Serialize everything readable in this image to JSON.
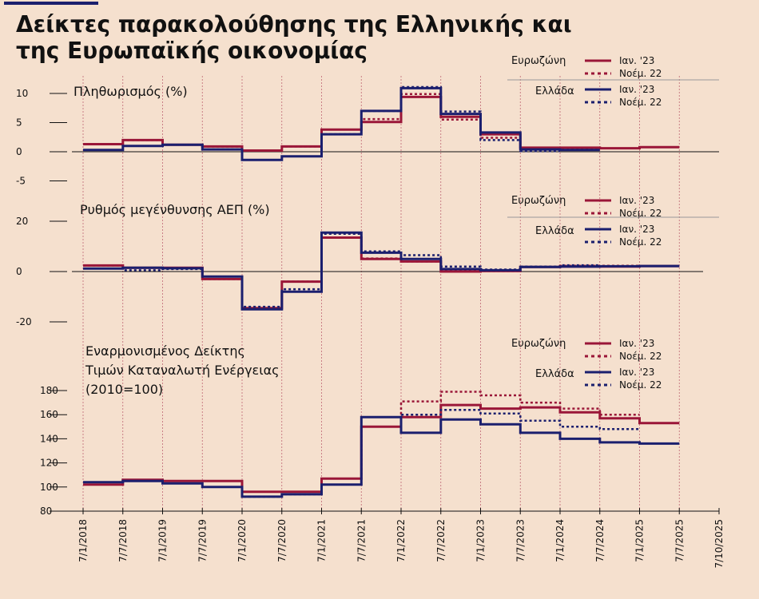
{
  "header": {
    "title_line1": "Δείκτες παρακολούθησης της  Ελληνικής και",
    "title_line2": "της Ευρωπαϊκής οικονομίας"
  },
  "colors": {
    "eurozone": "#9a1638",
    "greece": "#1b1f6e",
    "background": "#f5e0ce",
    "vlines": "#9a1638"
  },
  "legend": {
    "eurozone": "Ευρωζώνη",
    "greece": "Ελλάδα",
    "solid": "Ιαν. '23",
    "dotted": "Νοέμ. 22"
  },
  "x_ticks": [
    "7/1/2018",
    "7/7/2018",
    "7/1/2019",
    "7/7/2019",
    "7/1/2020",
    "7/7/2020",
    "7/1/2021",
    "7/7/2021",
    "7/1/2022",
    "7/7/2022",
    "7/1/2023",
    "7/7/2023",
    "7/1/2024",
    "7/7/2024",
    "7/1/2025",
    "7/7/2025",
    "7/10/2025"
  ],
  "chart_data": [
    {
      "type": "line",
      "title": "Πληθωρισμός (%)",
      "ylim": [
        -5,
        10
      ],
      "yticks": [
        "10",
        "5",
        "0",
        "-5"
      ],
      "ytick_values": [
        10,
        5,
        0,
        -5
      ],
      "x": [
        2018.5,
        2019.0,
        2019.5,
        2020.0,
        2020.5,
        2021.0,
        2021.5,
        2022.0,
        2022.5,
        2023.0,
        2023.5,
        2024.0,
        2024.5,
        2025.0,
        2025.5
      ],
      "series": [
        {
          "name": "Ευρωζώνη",
          "style": "solid",
          "color": "#9a1638",
          "values": [
            1.3,
            2.0,
            1.2,
            0.9,
            0.2,
            0.9,
            3.8,
            5.1,
            9.4,
            6.0,
            3.0,
            0.7,
            0.7,
            0.6,
            0.8
          ]
        },
        {
          "name": "Ευρωζώνη",
          "style": "dotted",
          "color": "#9a1638",
          "values": [
            1.3,
            2.0,
            1.2,
            0.9,
            0.2,
            0.9,
            3.8,
            5.6,
            9.9,
            5.5,
            2.4,
            0.6,
            0.6,
            null,
            null
          ]
        },
        {
          "name": "Ελλάδα",
          "style": "solid",
          "color": "#1b1f6e",
          "values": [
            0.3,
            1.0,
            1.2,
            0.4,
            -1.4,
            -0.8,
            3.0,
            7.0,
            10.9,
            6.5,
            3.3,
            0.4,
            0.3,
            null,
            null
          ]
        },
        {
          "name": "Ελλάδα",
          "style": "dotted",
          "color": "#1b1f6e",
          "values": [
            0.3,
            1.0,
            1.2,
            0.4,
            -1.4,
            -0.8,
            3.0,
            7.0,
            11.1,
            6.9,
            2.0,
            0.1,
            null,
            null,
            null
          ]
        }
      ]
    },
    {
      "type": "line",
      "title": "Ρυθμός μεγένθυνσης ΑΕΠ (%)",
      "ylim": [
        -20,
        20
      ],
      "yticks": [
        "20",
        "0",
        "-20"
      ],
      "ytick_values": [
        20,
        0,
        -20
      ],
      "x": [
        2018.5,
        2019.0,
        2019.5,
        2020.0,
        2020.5,
        2021.0,
        2021.5,
        2022.0,
        2022.5,
        2023.0,
        2023.5,
        2024.0,
        2024.5,
        2025.0,
        2025.5
      ],
      "series": [
        {
          "name": "Ευρωζώνη",
          "style": "solid",
          "color": "#9a1638",
          "values": [
            2.4,
            1.5,
            1.5,
            -3.0,
            -14.5,
            -4.0,
            13.5,
            5.0,
            4.0,
            0.0,
            0.2,
            1.8,
            2.0,
            2.0,
            2.2
          ]
        },
        {
          "name": "Ευρωζώνη",
          "style": "dotted",
          "color": "#9a1638",
          "values": [
            2.4,
            1.5,
            1.5,
            -3.0,
            -14.5,
            -4.0,
            13.5,
            5.2,
            4.0,
            0.3,
            0.2,
            1.8,
            2.3,
            2.3,
            null
          ]
        },
        {
          "name": "Ελλάδα",
          "style": "solid",
          "color": "#1b1f6e",
          "values": [
            1.2,
            1.5,
            1.3,
            -2.0,
            -15.0,
            -8.0,
            15.5,
            7.5,
            5.0,
            1.0,
            0.5,
            1.8,
            2.0,
            2.1,
            2.2
          ]
        },
        {
          "name": "Ελλάδα",
          "style": "dotted",
          "color": "#1b1f6e",
          "values": [
            1.2,
            0.5,
            1.0,
            -2.0,
            -14.0,
            -7.0,
            15.0,
            8.0,
            6.5,
            2.0,
            0.8,
            2.0,
            2.5,
            null,
            null
          ]
        }
      ]
    },
    {
      "type": "line",
      "title": "Εναρμονισμένος Δείκτης",
      "title_line2": "Τιμών Καταναλωτή Ενέργειας",
      "title_line3": "(2010=100)",
      "ylim": [
        80,
        180
      ],
      "yticks": [
        "180",
        "160",
        "140",
        "120",
        "100",
        "80"
      ],
      "ytick_values": [
        180,
        160,
        140,
        120,
        100,
        80
      ],
      "x": [
        2018.5,
        2019.0,
        2019.5,
        2020.0,
        2020.5,
        2021.0,
        2021.5,
        2022.0,
        2022.5,
        2023.0,
        2023.5,
        2024.0,
        2024.5,
        2025.0,
        2025.5
      ],
      "series": [
        {
          "name": "Ευρωζώνη",
          "style": "solid",
          "color": "#9a1638",
          "values": [
            102,
            106,
            105,
            105,
            96,
            96,
            107,
            150,
            158,
            168,
            165,
            166,
            162,
            157,
            153
          ]
        },
        {
          "name": "Ευρωζώνη",
          "style": "dotted",
          "color": "#9a1638",
          "values": [
            102,
            106,
            105,
            105,
            96,
            96,
            107,
            150,
            171,
            179,
            176,
            170,
            165,
            160,
            null
          ]
        },
        {
          "name": "Ελλάδα",
          "style": "solid",
          "color": "#1b1f6e",
          "values": [
            104,
            105,
            103,
            100,
            92,
            94,
            102,
            158,
            145,
            156,
            152,
            145,
            140,
            137,
            136
          ]
        },
        {
          "name": "Ελλάδα",
          "style": "dotted",
          "color": "#1b1f6e",
          "values": [
            104,
            105,
            103,
            100,
            92,
            94,
            102,
            158,
            160,
            164,
            161,
            155,
            150,
            148,
            null
          ]
        }
      ]
    }
  ]
}
